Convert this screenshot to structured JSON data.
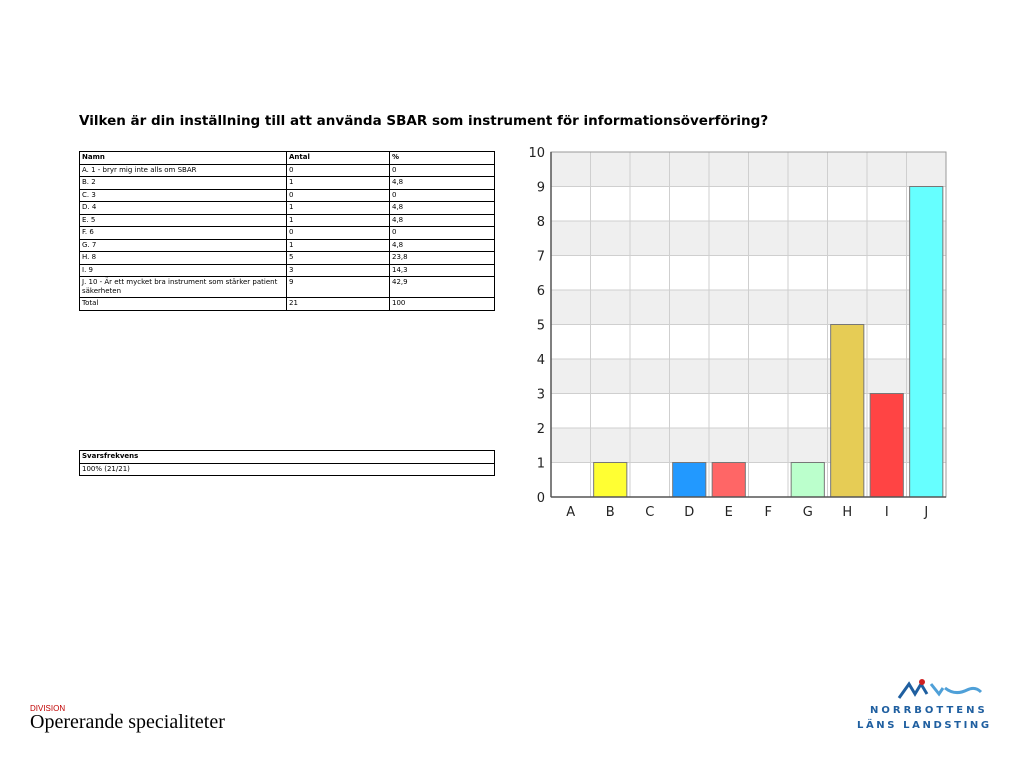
{
  "question_title": "Vilken är din inställning till att använda SBAR som instrument för informationsöverföring?",
  "results_table": {
    "headers": [
      "Namn",
      "Antal",
      "%"
    ],
    "rows": [
      [
        "A. 1 - bryr mig inte alls om SBAR",
        "0",
        "0"
      ],
      [
        "B. 2",
        "1",
        "4,8"
      ],
      [
        "C. 3",
        "0",
        "0"
      ],
      [
        "D. 4",
        "1",
        "4,8"
      ],
      [
        "E. 5",
        "1",
        "4,8"
      ],
      [
        "F. 6",
        "0",
        "0"
      ],
      [
        "G. 7",
        "1",
        "4,8"
      ],
      [
        "H. 8",
        "5",
        "23,8"
      ],
      [
        "I. 9",
        "3",
        "14,3"
      ],
      [
        "J. 10 - Är ett mycket bra instrument som stärker patient säkerheten",
        "9",
        "42,9"
      ],
      [
        "Total",
        "21",
        "100"
      ]
    ]
  },
  "response_table": {
    "header": "Svarsfrekvens",
    "value": "100% (21/21)"
  },
  "chart_data": {
    "type": "bar",
    "categories": [
      "A",
      "B",
      "C",
      "D",
      "E",
      "F",
      "G",
      "H",
      "I",
      "J"
    ],
    "values": [
      0,
      1,
      0,
      1,
      1,
      0,
      1,
      5,
      3,
      9
    ],
    "colors": [
      "#cccccc",
      "#ffff33",
      "#cccccc",
      "#2299ff",
      "#ff6666",
      "#cccccc",
      "#bbffcc",
      "#e6cc55",
      "#ff4444",
      "#66ffff"
    ],
    "ylim": [
      0,
      10
    ],
    "yticks": [
      0,
      1,
      2,
      3,
      4,
      5,
      6,
      7,
      8,
      9,
      10
    ],
    "grid": true,
    "band_color": "#efefef"
  },
  "footer": {
    "division_label": "DIVISION",
    "division_name": "Opererande specialiteter"
  },
  "logo": {
    "line1": "NORRBOTTENS",
    "line2": "LÄNS LANDSTING"
  }
}
